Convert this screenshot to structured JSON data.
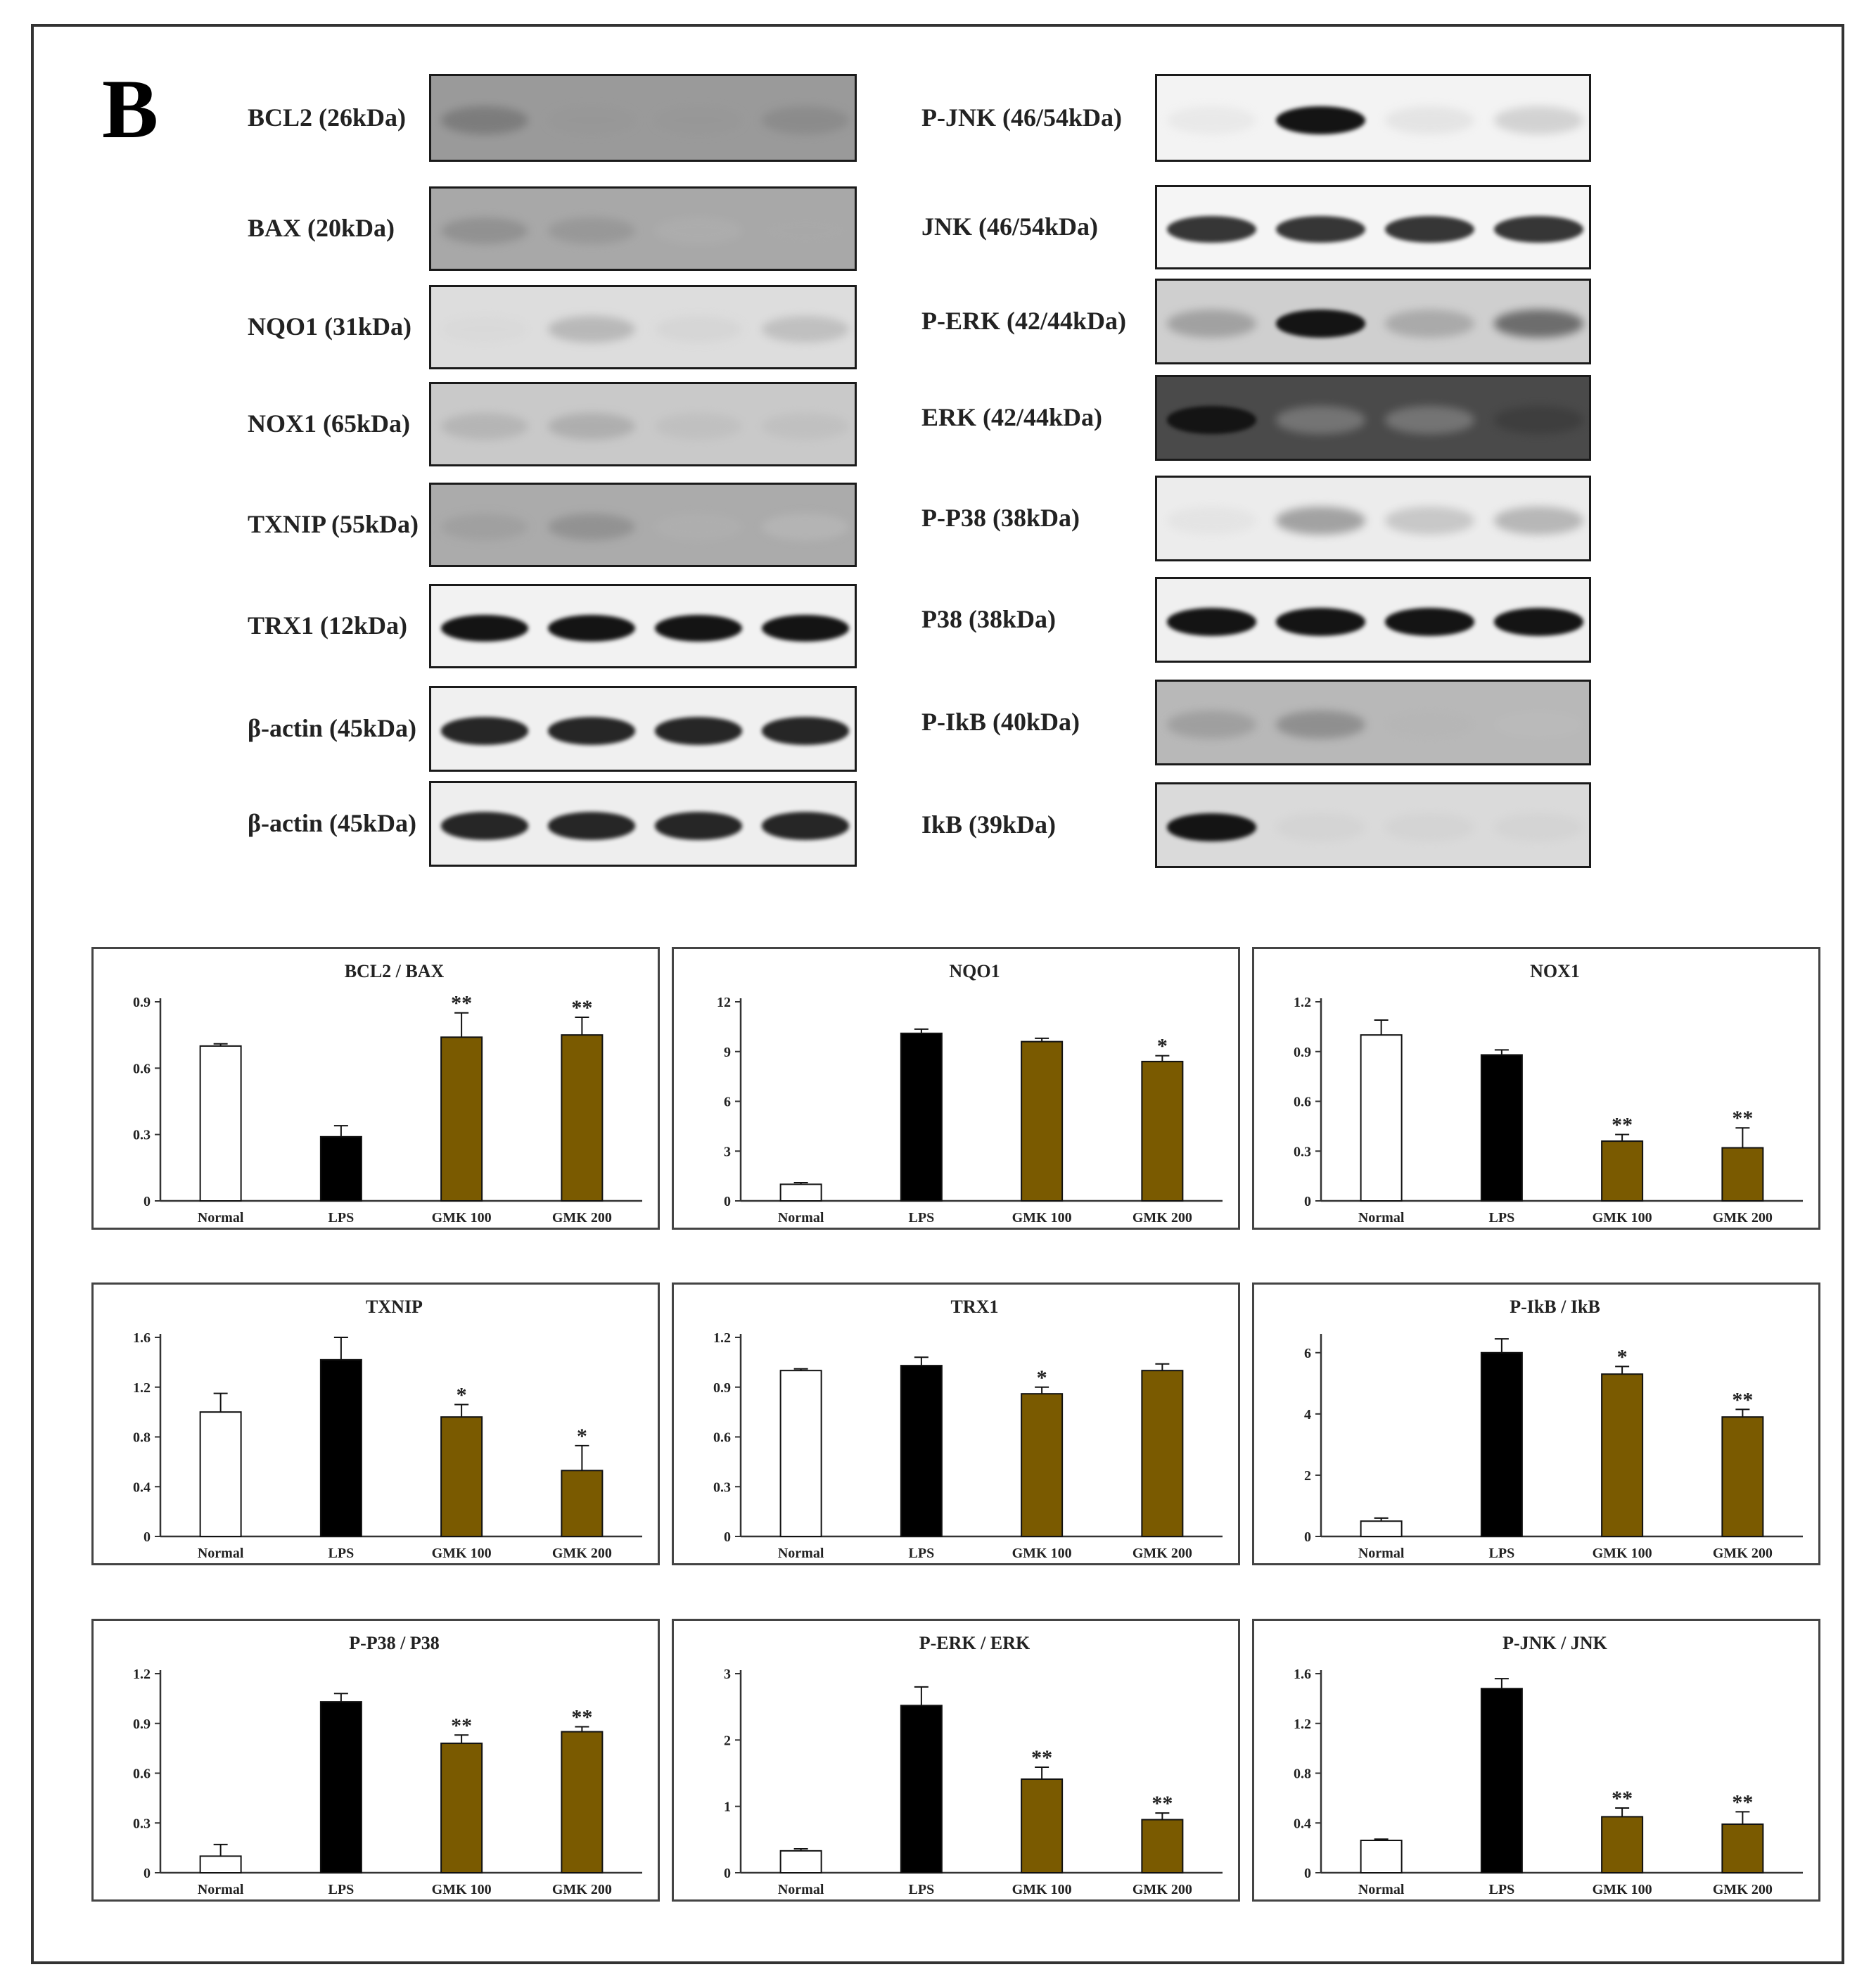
{
  "panel_letter": "B",
  "colors": {
    "normal": "#ffffff",
    "lps": "#000000",
    "gmk": "#7a5a00",
    "axis": "#333333"
  },
  "blots_left": [
    {
      "label": "BCL2 (26kDa)",
      "bg": "#9a9a9a",
      "bands": [
        0.55,
        0.35,
        0.35,
        0.45
      ]
    },
    {
      "label": "BAX (20kDa)",
      "bg": "#a8a8a8",
      "bands": [
        0.45,
        0.4,
        0.2,
        0.25
      ]
    },
    {
      "label": "NQO1 (31kDa)",
      "bg": "#dddddd",
      "bands": [
        0.05,
        0.35,
        0.1,
        0.3
      ]
    },
    {
      "label": "NOX1 (65kDa)",
      "bg": "#c9c9c9",
      "bands": [
        0.3,
        0.35,
        0.2,
        0.2
      ]
    },
    {
      "label": "TXNIP (55kDa)",
      "bg": "#ababab",
      "bands": [
        0.35,
        0.45,
        0.2,
        0.1
      ]
    },
    {
      "label": "TRX1 (12kDa)",
      "bg": "#f2f2f2",
      "bands": [
        1,
        1,
        1,
        1
      ]
    },
    {
      "label": "β-actin (45kDa)",
      "bg": "#f0f0f0",
      "bands": [
        0.95,
        0.95,
        0.95,
        0.95
      ]
    },
    {
      "label": "β-actin (45kDa)",
      "bg": "#eeeeee",
      "bands": [
        0.95,
        0.95,
        0.95,
        0.95
      ]
    }
  ],
  "blots_right": [
    {
      "label": "P-JNK (46/54kDa)",
      "bg": "#f3f3f3",
      "bands": [
        0.05,
        1,
        0.1,
        0.25
      ]
    },
    {
      "label": "JNK (46/54kDa)",
      "bg": "#f5f5f5",
      "bands": [
        0.9,
        0.9,
        0.9,
        0.9
      ]
    },
    {
      "label": "P-ERK (42/44kDa)",
      "bg": "#cfcfcf",
      "bands": [
        0.45,
        1,
        0.4,
        0.7
      ]
    },
    {
      "label": "ERK (42/44kDa)",
      "bg": "#4a4a4a",
      "bands": [
        1,
        0.15,
        0.15,
        0.8
      ]
    },
    {
      "label": "P-P38 (38kDa)",
      "bg": "#ececec",
      "bands": [
        0.05,
        0.5,
        0.3,
        0.4
      ]
    },
    {
      "label": "P38 (38kDa)",
      "bg": "#f0f0f0",
      "bands": [
        1,
        1,
        1,
        1
      ]
    },
    {
      "label": "P-IkB (40kDa)",
      "bg": "#b8b8b8",
      "bands": [
        0.4,
        0.5,
        0.2,
        0.15
      ]
    },
    {
      "label": "IkB (39kDa)",
      "bg": "#dadada",
      "bands": [
        1,
        0.1,
        0.1,
        0.1
      ]
    }
  ],
  "chart_data": [
    {
      "type": "bar",
      "title": "BCL2 / BAX",
      "categories": [
        "Normal",
        "LPS",
        "GMK 100",
        "GMK 200"
      ],
      "values": [
        0.7,
        0.29,
        0.74,
        0.75
      ],
      "errors": [
        0.01,
        0.05,
        0.11,
        0.08
      ],
      "significance": [
        "",
        "",
        "**",
        "**"
      ],
      "yticks": [
        "0",
        "0.3",
        "0.6",
        "0.9"
      ],
      "ylim": [
        0,
        0.9
      ]
    },
    {
      "type": "bar",
      "title": "NQO1",
      "categories": [
        "Normal",
        "LPS",
        "GMK 100",
        "GMK 200"
      ],
      "values": [
        1.0,
        10.1,
        9.6,
        8.4
      ],
      "errors": [
        0.1,
        0.25,
        0.2,
        0.35
      ],
      "significance": [
        "",
        "",
        "",
        "*"
      ],
      "yticks": [
        "0",
        "3",
        "6",
        "9",
        "12"
      ],
      "ylim": [
        0,
        12
      ]
    },
    {
      "type": "bar",
      "title": "NOX1",
      "categories": [
        "Normal",
        "LPS",
        "GMK 100",
        "GMK 200"
      ],
      "values": [
        1.0,
        0.88,
        0.36,
        0.32
      ],
      "errors": [
        0.09,
        0.03,
        0.04,
        0.12
      ],
      "significance": [
        "",
        "",
        "**",
        "**"
      ],
      "yticks": [
        "0",
        "0.3",
        "0.6",
        "0.9",
        "1.2"
      ],
      "ylim": [
        0,
        1.2
      ]
    },
    {
      "type": "bar",
      "title": "TXNIP",
      "categories": [
        "Normal",
        "LPS",
        "GMK 100",
        "GMK 200"
      ],
      "values": [
        1.0,
        1.42,
        0.96,
        0.53
      ],
      "errors": [
        0.15,
        0.18,
        0.1,
        0.2
      ],
      "significance": [
        "",
        "",
        "*",
        "*"
      ],
      "yticks": [
        "0",
        "0.4",
        "0.8",
        "1.2",
        "1.6"
      ],
      "ylim": [
        0,
        1.6
      ]
    },
    {
      "type": "bar",
      "title": "TRX1",
      "categories": [
        "Normal",
        "LPS",
        "GMK 100",
        "GMK 200"
      ],
      "values": [
        1.0,
        1.03,
        0.86,
        1.0
      ],
      "errors": [
        0.01,
        0.05,
        0.04,
        0.04
      ],
      "significance": [
        "",
        "",
        "*",
        ""
      ],
      "yticks": [
        "0",
        "0.3",
        "0.6",
        "0.9",
        "1.2"
      ],
      "ylim": [
        0,
        1.2
      ]
    },
    {
      "type": "bar",
      "title": "P-IkB / IkB",
      "categories": [
        "Normal",
        "LPS",
        "GMK 100",
        "GMK 200"
      ],
      "values": [
        0.5,
        6.0,
        5.3,
        3.9
      ],
      "errors": [
        0.1,
        0.45,
        0.25,
        0.25
      ],
      "significance": [
        "",
        "",
        "*",
        "**"
      ],
      "yticks": [
        "0",
        "2",
        "4",
        "6"
      ],
      "ylim": [
        0,
        6.5
      ]
    },
    {
      "type": "bar",
      "title": "P-P38 / P38",
      "categories": [
        "Normal",
        "LPS",
        "GMK 100",
        "GMK 200"
      ],
      "values": [
        0.1,
        1.03,
        0.78,
        0.85
      ],
      "errors": [
        0.07,
        0.05,
        0.05,
        0.03
      ],
      "significance": [
        "",
        "",
        "**",
        "**"
      ],
      "yticks": [
        "0",
        "0.3",
        "0.6",
        "0.9",
        "1.2"
      ],
      "ylim": [
        0,
        1.2
      ]
    },
    {
      "type": "bar",
      "title": "P-ERK / ERK",
      "categories": [
        "Normal",
        "LPS",
        "GMK 100",
        "GMK 200"
      ],
      "values": [
        0.33,
        2.52,
        1.41,
        0.8
      ],
      "errors": [
        0.03,
        0.28,
        0.18,
        0.1
      ],
      "significance": [
        "",
        "",
        "**",
        "**"
      ],
      "yticks": [
        "0",
        "1",
        "2",
        "3"
      ],
      "ylim": [
        0,
        3
      ]
    },
    {
      "type": "bar",
      "title": "P-JNK / JNK",
      "categories": [
        "Normal",
        "LPS",
        "GMK 100",
        "GMK 200"
      ],
      "values": [
        0.26,
        1.48,
        0.45,
        0.39
      ],
      "errors": [
        0.01,
        0.08,
        0.07,
        0.1
      ],
      "significance": [
        "",
        "",
        "**",
        "**"
      ],
      "yticks": [
        "0",
        "0.4",
        "0.8",
        "1.2",
        "1.6"
      ],
      "ylim": [
        0,
        1.6
      ]
    }
  ]
}
